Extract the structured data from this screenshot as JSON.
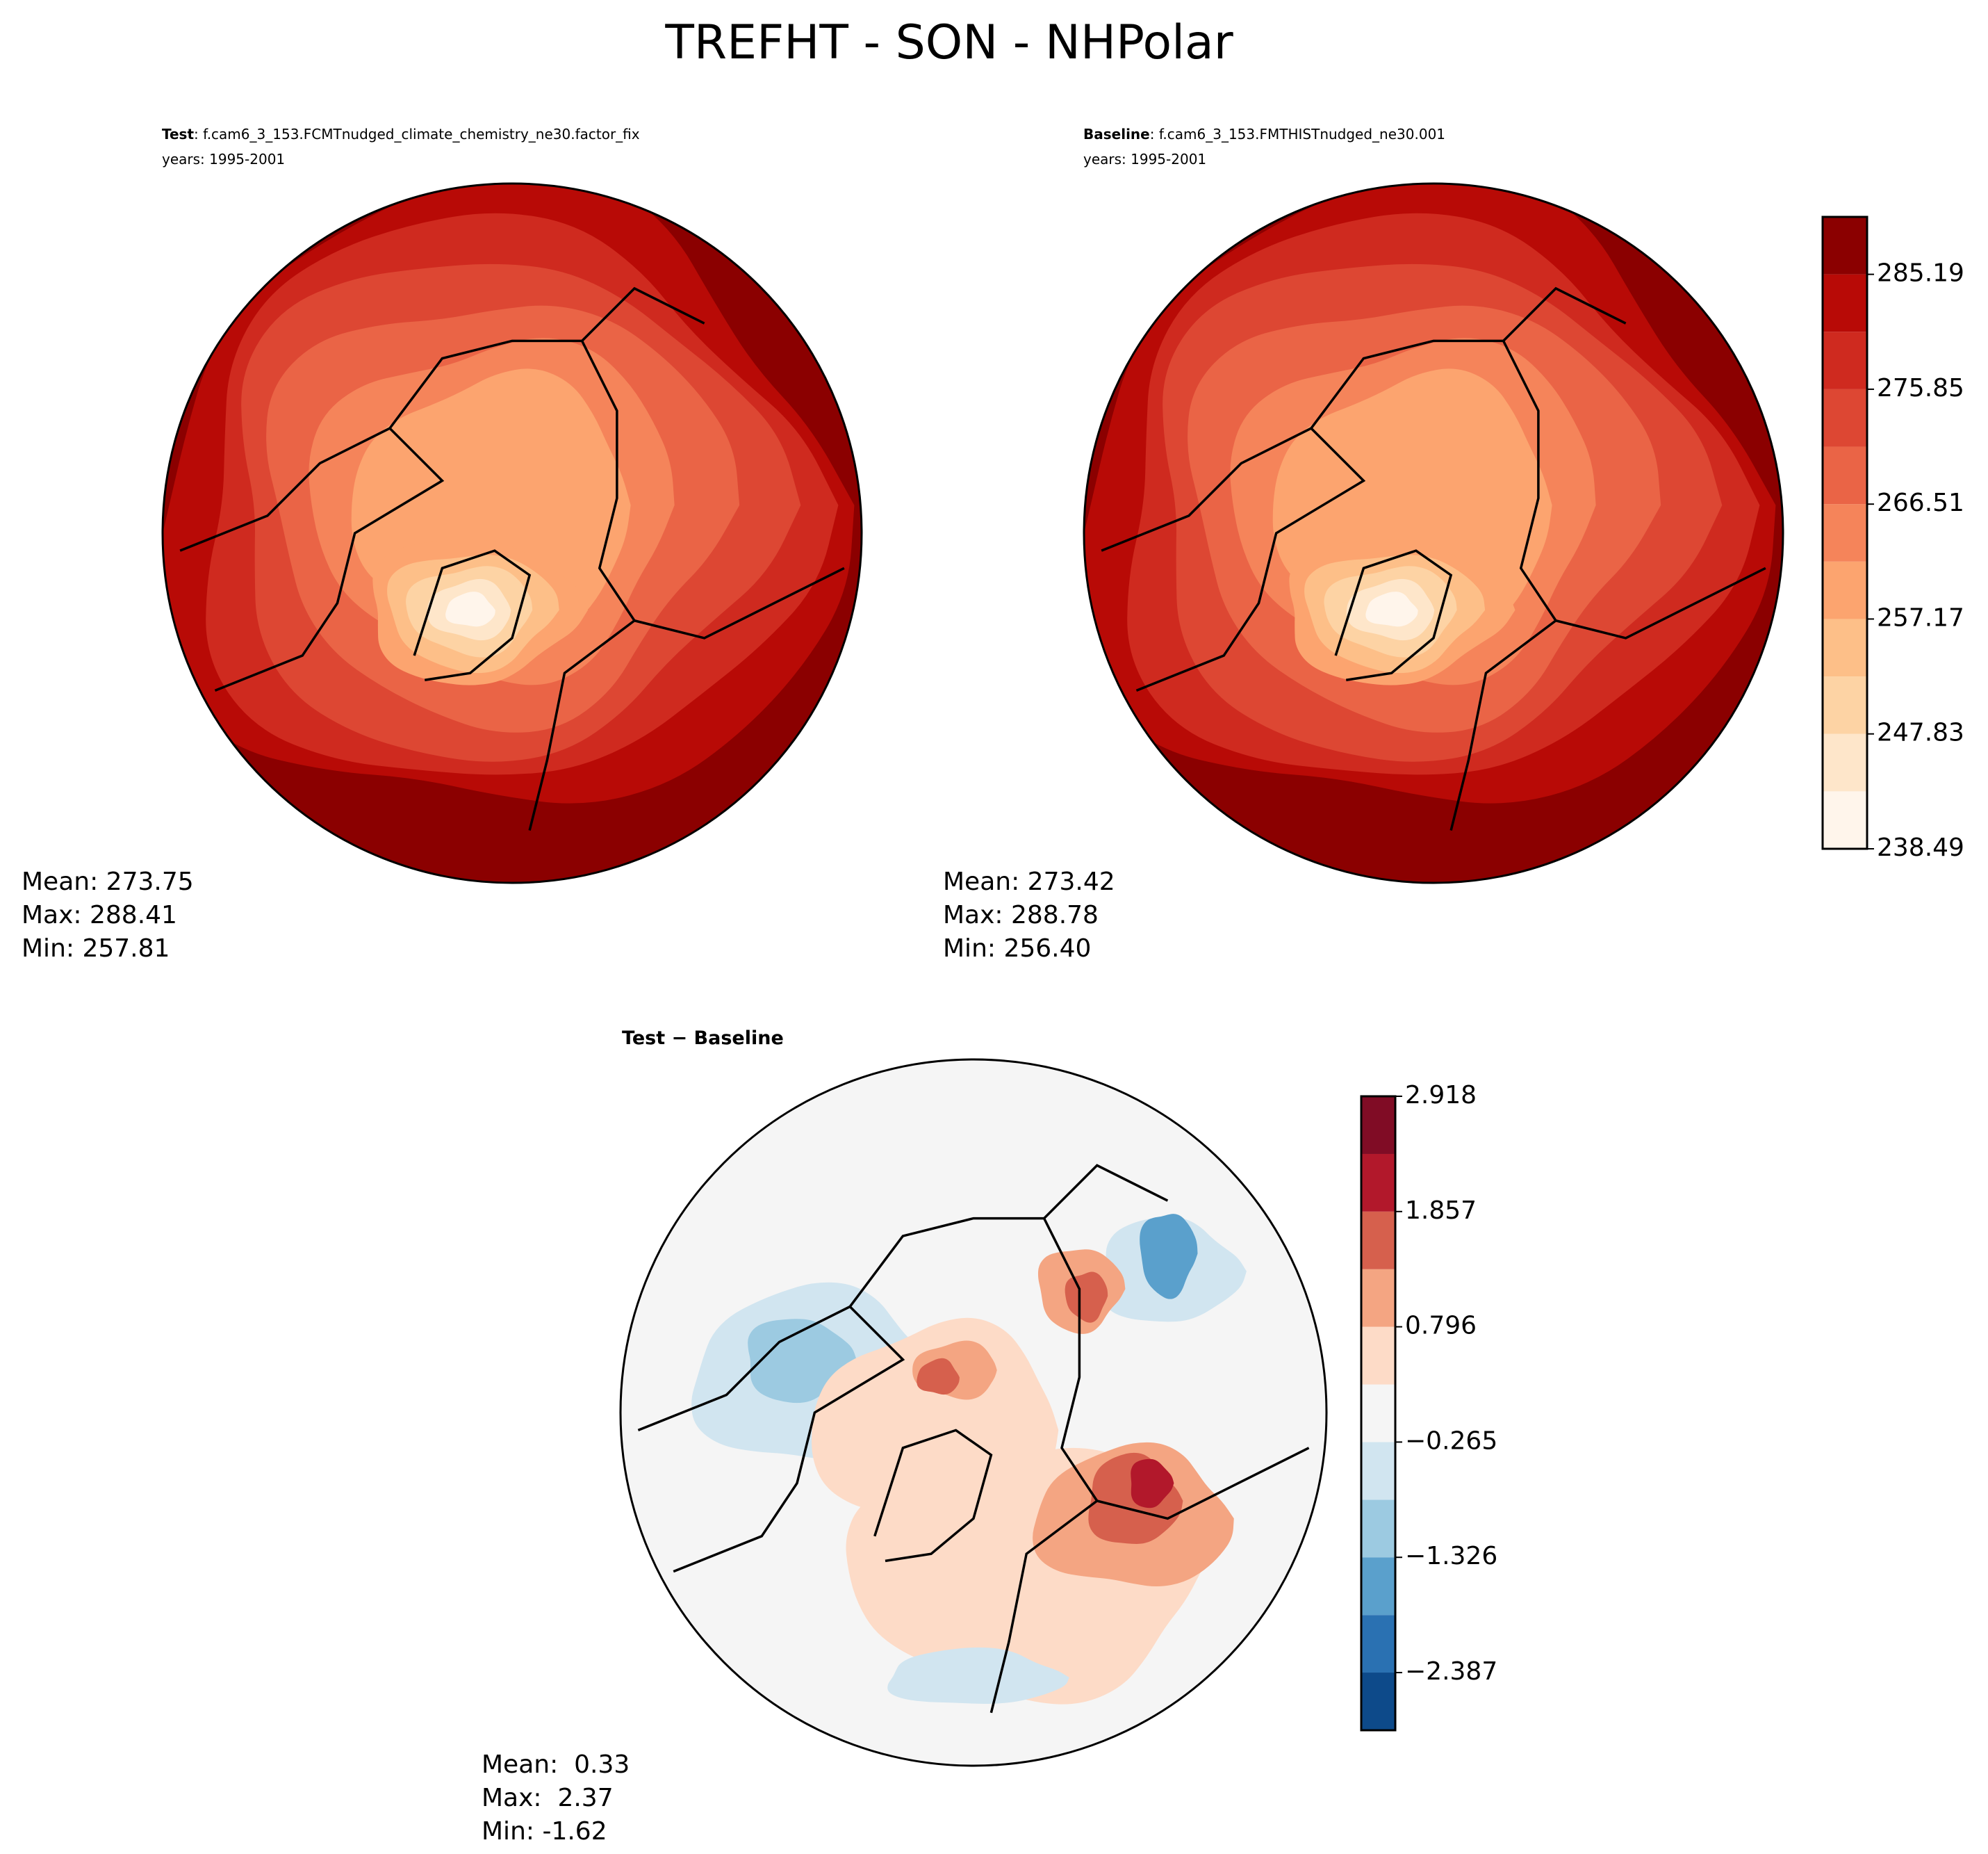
{
  "title": "TREFHT - SON - NHPolar",
  "panels": [
    {
      "label": "Test",
      "case": ": f.cam6_3_153.FCMTnudged_climate_chemistry_ne30.factor_fix",
      "years": "years: 1995-2001",
      "stats": [
        "Mean: 273.75",
        "Max: 288.41",
        "Min: 257.81"
      ]
    },
    {
      "label": "Baseline",
      "case": ": f.cam6_3_153.FMTHISTnudged_ne30.001",
      "years": "years: 1995-2001",
      "stats": [
        "Mean: 273.42",
        "Max: 288.78",
        "Min: 256.40"
      ]
    },
    {
      "label": "Test − Baseline",
      "stats": [
        "Mean:  0.33",
        "Max:  2.37",
        "Min: -1.62"
      ]
    }
  ],
  "colorbars": [
    {
      "levels": [
        238.49,
        243.16,
        247.83,
        252.5,
        257.17,
        261.84,
        266.51,
        271.18,
        275.85,
        280.52,
        285.19,
        289.86
      ],
      "colors": [
        "#fff5eb",
        "#fee6ca",
        "#fdd3a4",
        "#fdbf88",
        "#fca46f",
        "#f5845a",
        "#ea6446",
        "#dd4733",
        "#cf2a1f",
        "#b80a06",
        "#8b0000"
      ],
      "ticks": [
        238.49,
        247.83,
        257.17,
        266.51,
        275.85,
        285.19
      ]
    },
    {
      "levels": [
        -2.918,
        -2.387,
        -1.857,
        -1.326,
        -0.796,
        -0.265,
        0.265,
        0.796,
        1.326,
        1.857,
        2.387,
        2.918
      ],
      "colors": [
        "#0d4a8a",
        "#2a71b2",
        "#5aa0cc",
        "#9ccae1",
        "#d1e5f0",
        "#f5f5f5",
        "#fddbc7",
        "#f4a582",
        "#d6604d",
        "#b2182b",
        "#800c25"
      ],
      "ticks": [
        {
          "value": -2.387,
          "label": "−2.387"
        },
        {
          "value": -1.326,
          "label": "−1.326"
        },
        {
          "value": -0.265,
          "label": "−0.265"
        },
        0.796,
        1.857,
        2.918
      ]
    }
  ]
}
